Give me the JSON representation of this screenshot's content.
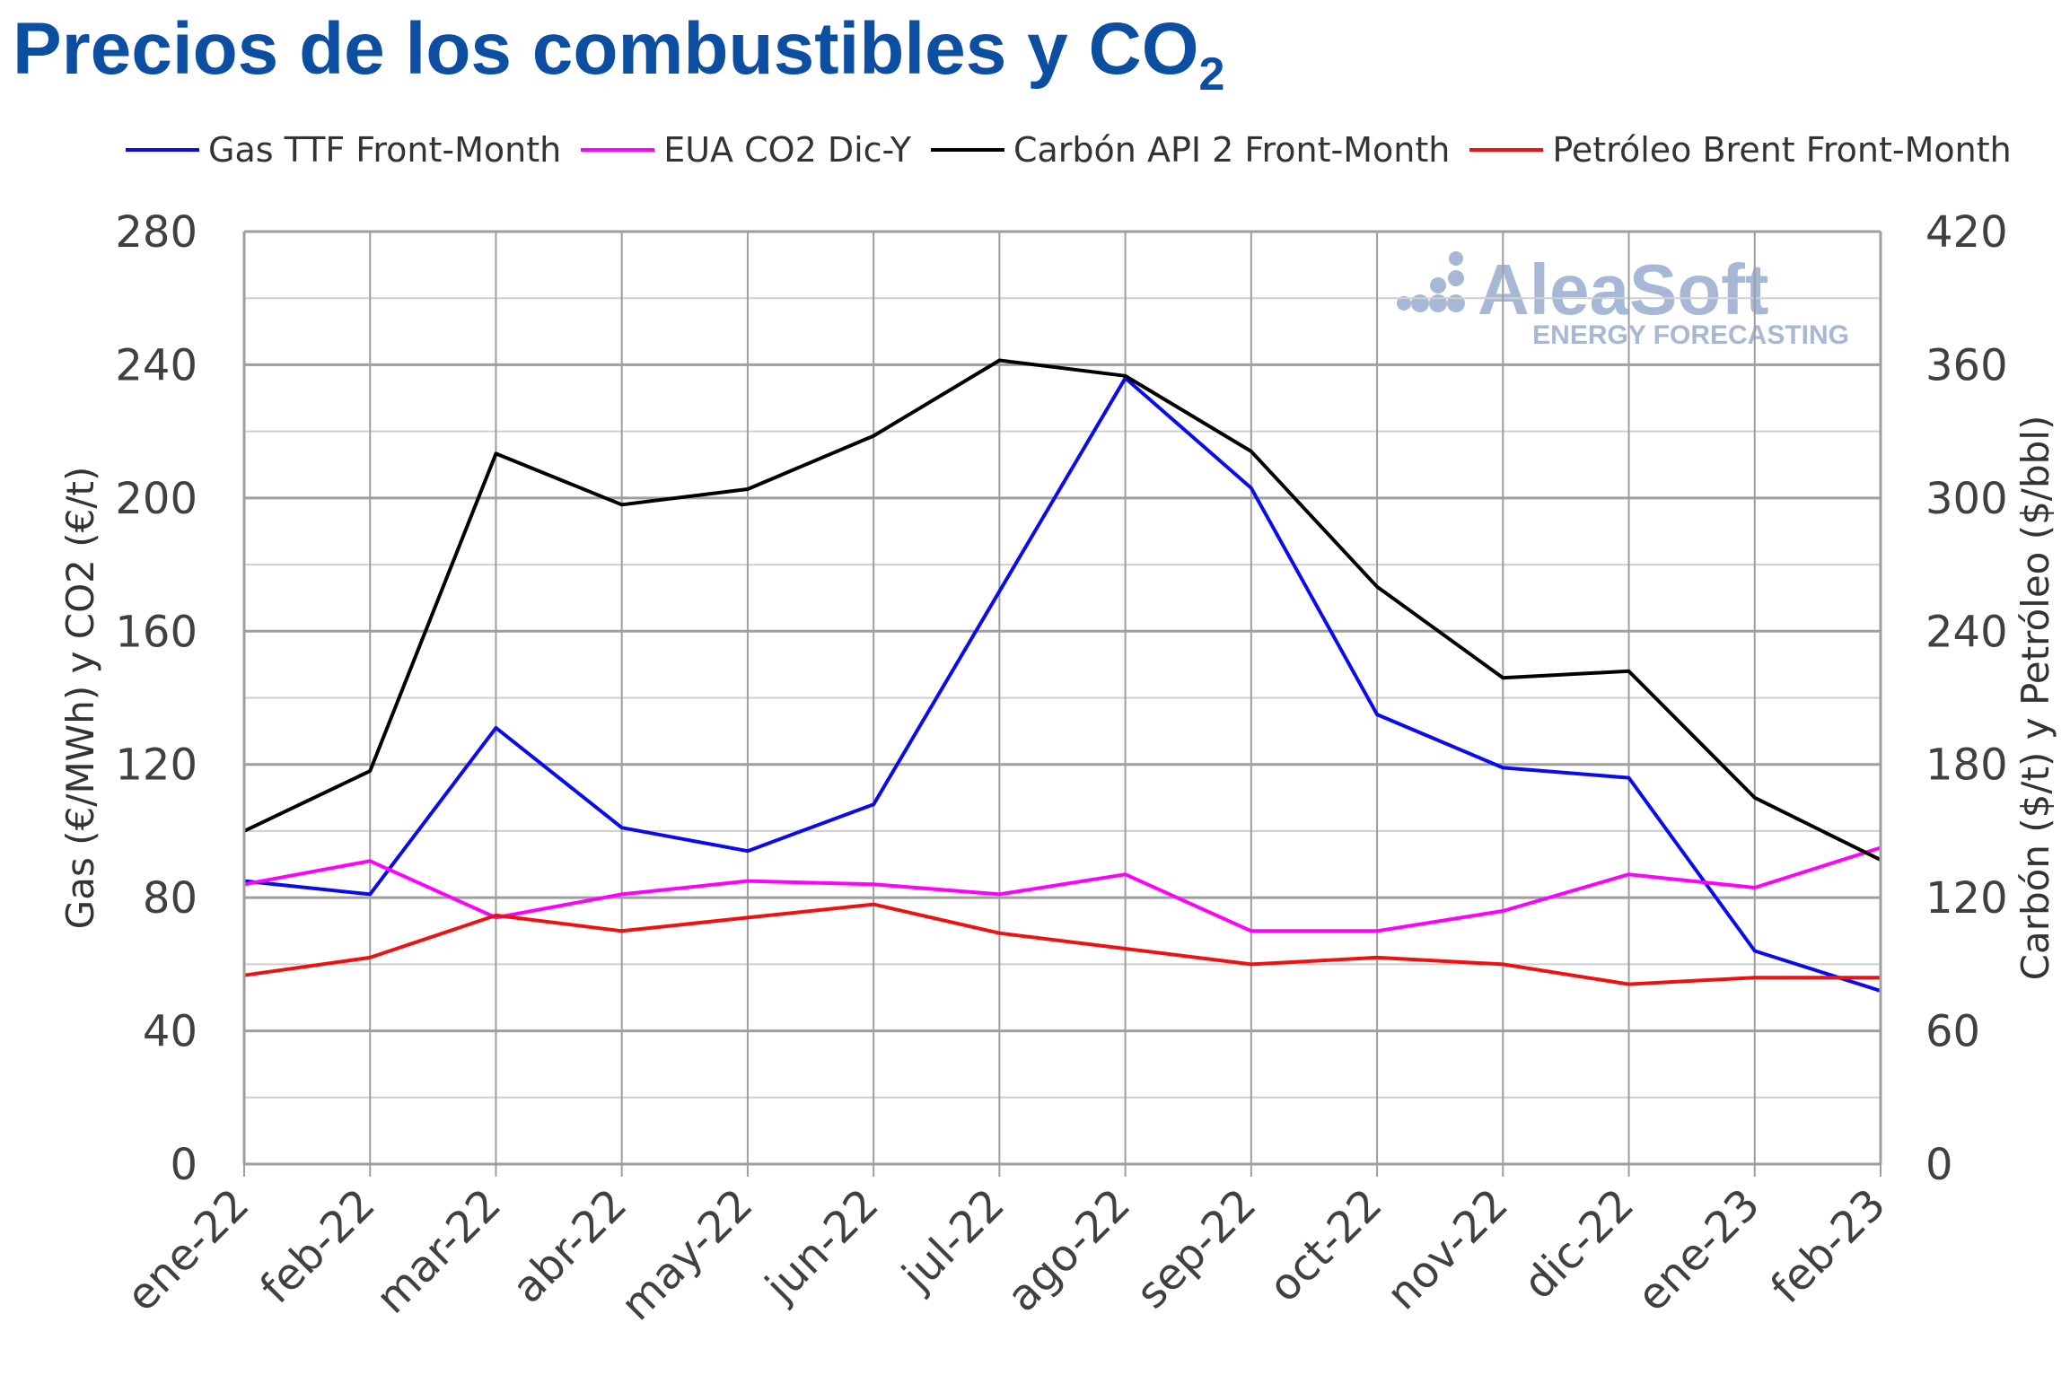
{
  "title_main": "Precios de los combustibles y CO",
  "title_sub": "2",
  "logo": {
    "name": "AleaSoft",
    "tagline": "ENERGY FORECASTING",
    "color": "#a7b8d6"
  },
  "chart_data": {
    "type": "line",
    "title": "Precios de los combustibles y CO2",
    "categories": [
      "ene-22",
      "feb-22",
      "mar-22",
      "abr-22",
      "may-22",
      "jun-22",
      "jul-22",
      "ago-22",
      "sep-22",
      "oct-22",
      "nov-22",
      "dic-22",
      "ene-23",
      "feb-23"
    ],
    "ylabel_left": "Gas (€/MWh) y CO2 (€/t)",
    "ylabel_right": "Carbón ($/t) y Petróleo ($/bbl)",
    "ylim_left": [
      0,
      280
    ],
    "ylim_right": [
      0,
      420
    ],
    "yticks_left": [
      "0",
      "40",
      "80",
      "120",
      "160",
      "200",
      "240",
      "280"
    ],
    "yticks_right": [
      "0",
      "60",
      "120",
      "180",
      "240",
      "300",
      "360",
      "420"
    ],
    "grid": true,
    "legend_position": "top",
    "series": [
      {
        "name": "Gas TTF Front-Month",
        "axis": "left",
        "color": "#0a0aee",
        "values": [
          85,
          81,
          131,
          101,
          94,
          108,
          172,
          236,
          203,
          135,
          119,
          116,
          64,
          52
        ]
      },
      {
        "name": "EUA CO2 Dic-Y",
        "axis": "left",
        "color": "#ff00ff",
        "values": [
          84,
          91,
          74,
          81,
          85,
          84,
          81,
          87,
          70,
          70,
          76,
          87,
          83,
          95
        ]
      },
      {
        "name": "Carbón API 2 Front-Month",
        "axis": "right",
        "color": "#000000",
        "values": [
          150,
          177,
          320,
          297,
          304,
          328,
          362,
          355,
          321,
          260,
          219,
          222,
          165,
          137
        ]
      },
      {
        "name": "Petróleo Brent Front-Month",
        "axis": "right",
        "color": "#ee1111",
        "values": [
          85,
          93,
          112,
          105,
          111,
          117,
          104,
          97,
          90,
          93,
          90,
          81,
          84,
          84
        ]
      }
    ]
  }
}
